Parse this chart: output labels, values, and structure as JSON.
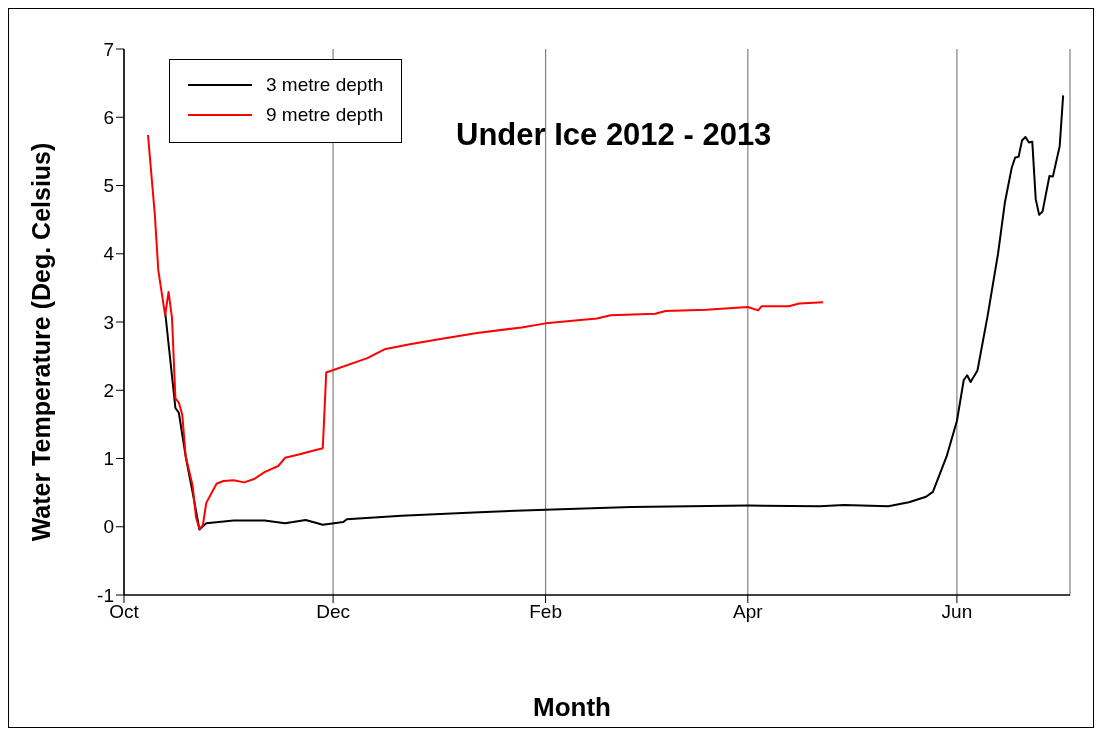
{
  "chart_data": {
    "type": "line",
    "title": "Under Ice 2012 - 2013",
    "xlabel": "Month",
    "ylabel": "Water Temperature (Deg. Celsius)",
    "xlim": [
      "2012-10-01",
      "2013-07-04"
    ],
    "xticks": [
      {
        "value": "2012-10-01",
        "label": "Oct"
      },
      {
        "value": "2012-12-01",
        "label": "Dec"
      },
      {
        "value": "2013-02-01",
        "label": "Feb"
      },
      {
        "value": "2013-04-01",
        "label": "Apr"
      },
      {
        "value": "2013-06-01",
        "label": "Jun"
      }
    ],
    "ylim": [
      -1,
      7
    ],
    "yticks": [
      -1,
      0,
      1,
      2,
      3,
      4,
      5,
      6,
      7
    ],
    "grid": "x",
    "legend": "top left",
    "marker": "none",
    "line_style": "solid",
    "series": [
      {
        "name": "3 metre depth",
        "color": "#000000",
        "x": [
          "2012-10-13",
          "2012-10-16",
          "2012-10-17",
          "2012-10-19",
          "2012-10-21",
          "2012-10-23",
          "2012-10-25",
          "2012-11-02",
          "2012-11-11",
          "2012-11-17",
          "2012-11-23",
          "2012-11-28",
          "2012-12-04",
          "2012-12-05",
          "2012-12-21",
          "2013-01-11",
          "2013-02-01",
          "2013-02-26",
          "2013-04-01",
          "2013-04-22",
          "2013-04-29",
          "2013-05-12",
          "2013-05-18",
          "2013-05-23",
          "2013-05-25",
          "2013-05-29",
          "2013-06-01",
          "2013-06-03",
          "2013-06-04",
          "2013-06-05",
          "2013-06-07",
          "2013-06-10",
          "2013-06-13",
          "2013-06-15",
          "2013-06-17",
          "2013-06-18",
          "2013-06-19",
          "2013-06-20",
          "2013-06-21",
          "2013-06-22",
          "2013-06-23",
          "2013-06-24",
          "2013-06-25",
          "2013-06-26",
          "2013-06-28",
          "2013-06-29",
          "2013-07-01",
          "2013-07-02"
        ],
        "values": [
          3.15,
          1.74,
          1.67,
          1.03,
          0.51,
          -0.04,
          0.05,
          0.09,
          0.09,
          0.05,
          0.1,
          0.03,
          0.07,
          0.11,
          0.16,
          0.21,
          0.25,
          0.29,
          0.31,
          0.3,
          0.32,
          0.3,
          0.36,
          0.44,
          0.51,
          1.03,
          1.55,
          2.15,
          2.22,
          2.12,
          2.29,
          3.1,
          4.0,
          4.75,
          5.26,
          5.41,
          5.42,
          5.66,
          5.71,
          5.63,
          5.64,
          4.8,
          4.57,
          4.62,
          5.14,
          5.13,
          5.58,
          6.32
        ]
      },
      {
        "name": "9 metre depth",
        "color": "#ff0000",
        "x": [
          "2012-10-08",
          "2012-10-10",
          "2012-10-11",
          "2012-10-13",
          "2012-10-14",
          "2012-10-15",
          "2012-10-16",
          "2012-10-17",
          "2012-10-18",
          "2012-10-19",
          "2012-10-21",
          "2012-10-22",
          "2012-10-23",
          "2012-10-24",
          "2012-10-25",
          "2012-10-28",
          "2012-10-30",
          "2012-11-02",
          "2012-11-05",
          "2012-11-08",
          "2012-11-11",
          "2012-11-15",
          "2012-11-17",
          "2012-11-21",
          "2012-11-24",
          "2012-11-28",
          "2012-11-29",
          "2012-12-11",
          "2012-12-16",
          "2012-12-23",
          "2012-12-31",
          "2013-01-12",
          "2013-01-25",
          "2013-02-01",
          "2013-02-16",
          "2013-02-20",
          "2013-03-05",
          "2013-03-08",
          "2013-03-20",
          "2013-04-01",
          "2013-04-04",
          "2013-04-05",
          "2013-04-13",
          "2013-04-16",
          "2013-04-23"
        ],
        "values": [
          5.74,
          4.57,
          3.76,
          3.1,
          3.44,
          3.06,
          1.88,
          1.82,
          1.64,
          1.03,
          0.61,
          0.14,
          -0.03,
          0.02,
          0.35,
          0.63,
          0.67,
          0.68,
          0.65,
          0.7,
          0.8,
          0.89,
          1.01,
          1.06,
          1.1,
          1.15,
          2.26,
          2.47,
          2.6,
          2.67,
          2.74,
          2.84,
          2.92,
          2.98,
          3.05,
          3.1,
          3.12,
          3.16,
          3.18,
          3.22,
          3.17,
          3.23,
          3.23,
          3.27,
          3.29
        ]
      }
    ]
  }
}
